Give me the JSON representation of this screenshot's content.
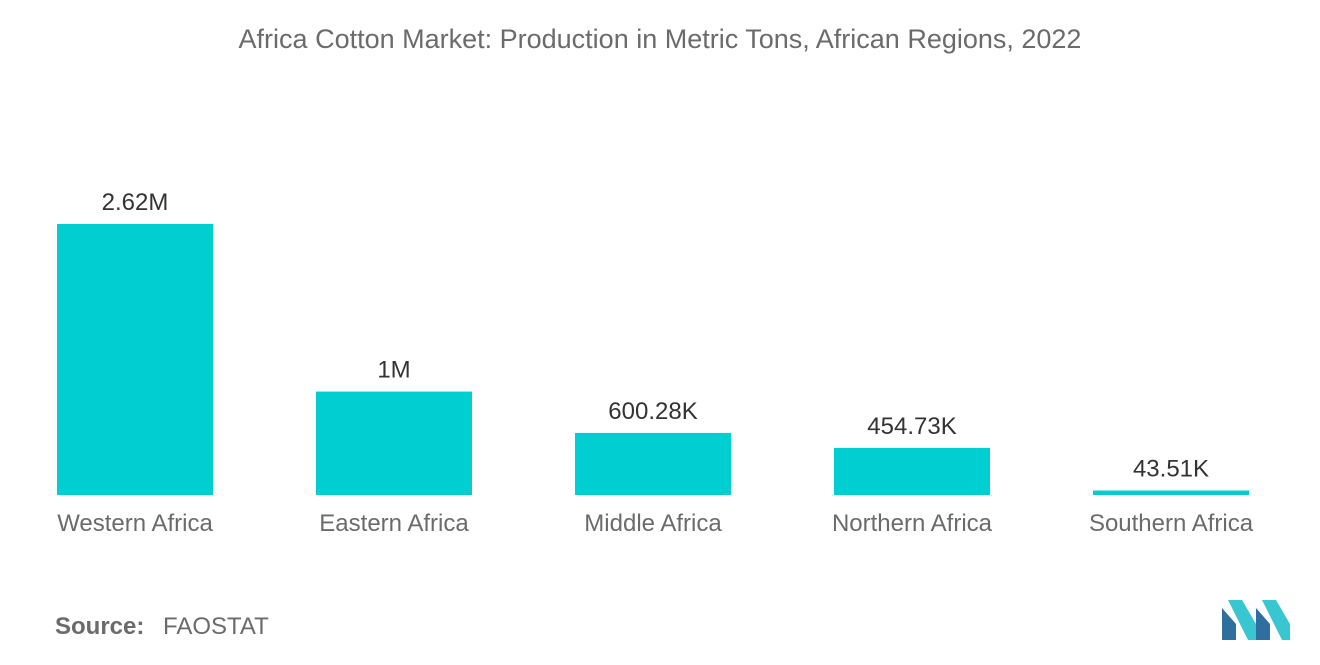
{
  "chart_data": {
    "type": "bar",
    "title": "Africa Cotton Market: Production in Metric Tons, African Regions, 2022",
    "categories": [
      "Western Africa",
      "Eastern Africa",
      "Middle Africa",
      "Northern Africa",
      "Southern Africa"
    ],
    "values": [
      2620000,
      1000000,
      600280,
      454730,
      43510
    ],
    "value_labels": [
      "2.62M",
      "1M",
      "600.28K",
      "454.73K",
      "43.51K"
    ],
    "ylim": [
      0,
      2620000
    ],
    "grid": false,
    "bar_color": "#00CED1"
  },
  "source": {
    "label": "Source:",
    "value": "FAOSTAT"
  },
  "colors": {
    "bar": "#00CED1",
    "text": "#6b6b6b",
    "label": "#333333",
    "logo_dark": "#2f6f9f",
    "logo_light": "#38c7d1"
  }
}
